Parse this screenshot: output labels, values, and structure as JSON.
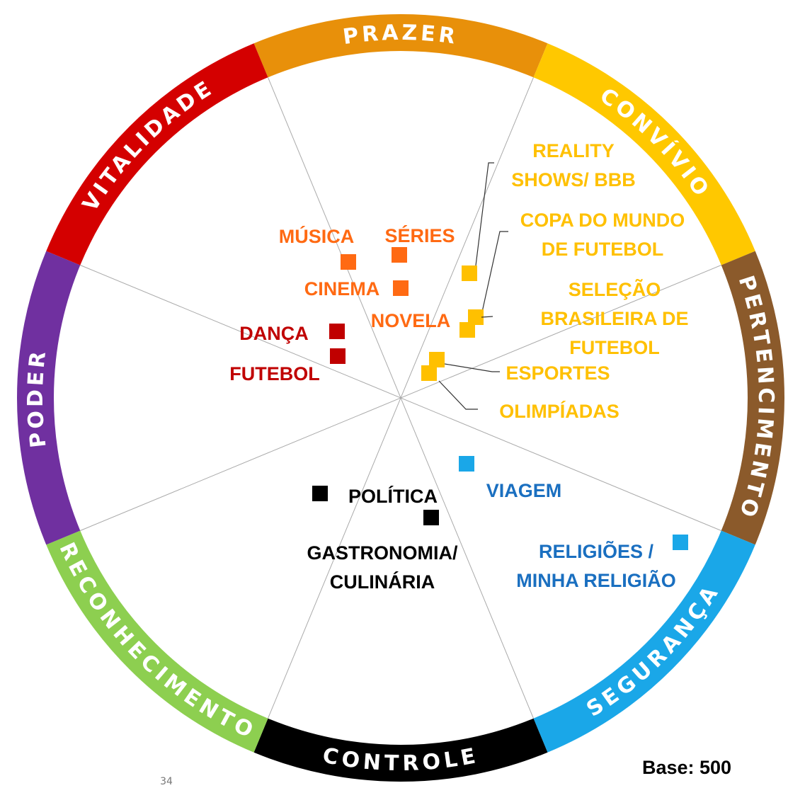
{
  "segments": [
    {
      "label": "PRAZER",
      "color": "#e8900a"
    },
    {
      "label": "CONVÍVIO",
      "color": "#ffc800"
    },
    {
      "label": "PERTENCIMENTO",
      "color": "#8b5a2b"
    },
    {
      "label": "SEGURANÇA",
      "color": "#1aa7e8"
    },
    {
      "label": "CONTROLE",
      "color": "#000000"
    },
    {
      "label": "RECONHECIMENTO",
      "color": "#8dcf50"
    },
    {
      "label": "PODER",
      "color": "#7030a0"
    },
    {
      "label": "VITALIDADE",
      "color": "#d40000"
    }
  ],
  "items": [
    {
      "lines": [
        "MÚSICA"
      ],
      "color": "#ff6a13"
    },
    {
      "lines": [
        "SÉRIES"
      ],
      "color": "#ff6a13"
    },
    {
      "lines": [
        "CINEMA"
      ],
      "color": "#ff6a13"
    },
    {
      "lines": [
        "NOVELA"
      ],
      "color": "#ff6a13"
    },
    {
      "lines": [
        "DANÇA"
      ],
      "color": "#c00000"
    },
    {
      "lines": [
        "FUTEBOL"
      ],
      "color": "#c00000"
    },
    {
      "lines": [
        "REALITY",
        "SHOWS/ BBB"
      ],
      "color": "#ffc000"
    },
    {
      "lines": [
        "COPA DO MUNDO",
        "DE FUTEBOL"
      ],
      "color": "#ffc000"
    },
    {
      "lines": [
        "SELEÇÃO",
        "BRASILEIRA DE",
        "FUTEBOL"
      ],
      "color": "#ffc000"
    },
    {
      "lines": [
        "ESPORTES"
      ],
      "color": "#ffc000"
    },
    {
      "lines": [
        "OLIMPÍADAS"
      ],
      "color": "#ffc000"
    },
    {
      "lines": [
        "VIAGEM"
      ],
      "color": "#1a6fc0"
    },
    {
      "lines": [
        "GASTRONOMIA/",
        "CULINÁRIA"
      ],
      "color": "#000000"
    },
    {
      "lines": [
        "RELIGIÕES /",
        "MINHA RELIGIÃO"
      ],
      "color": "#1a6fc0"
    },
    {
      "lines": [
        "POLÍTICA"
      ],
      "color": "#000000"
    }
  ],
  "footer": {
    "base": "Base: 500",
    "page": "34"
  }
}
